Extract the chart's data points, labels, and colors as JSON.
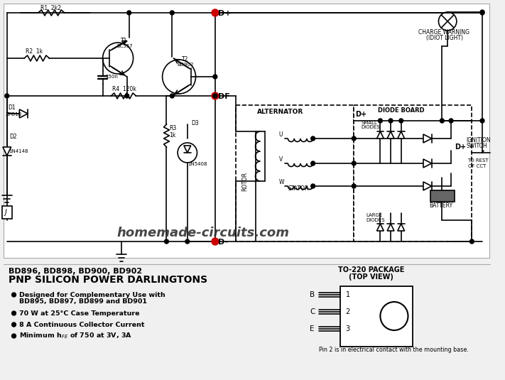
{
  "bg_color": "#f0f0f0",
  "circuit_color": "#000000",
  "red_dot_color": "#cc0000",
  "watermark": "homemade-circuits.com",
  "bottom_title1": "BD896, BD898, BD900, BD902",
  "bottom_title2": "PNP SILICON POWER DARLINGTONS",
  "to220_title": "TO-220 PACKAGE\n(TOP VIEW)",
  "to220_caption": "Pin 2 is in electrical contact with the mounting base.",
  "pin_labels": [
    "B",
    "C",
    "E"
  ],
  "pin_numbers": [
    "1",
    "2",
    "3"
  ]
}
